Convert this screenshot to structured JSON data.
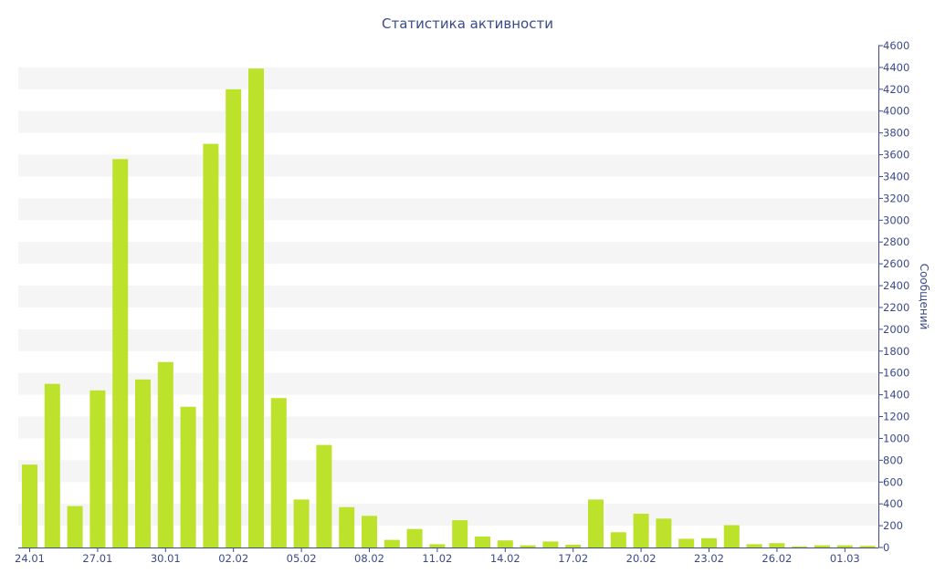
{
  "chart_data": {
    "type": "bar",
    "title": "Статистика активности",
    "xlabel": "",
    "ylabel": "Сообщений",
    "ylim": [
      0,
      4600
    ],
    "yticks": [
      0,
      200,
      400,
      600,
      800,
      1000,
      1200,
      1400,
      1600,
      1800,
      2000,
      2200,
      2400,
      2600,
      2800,
      3000,
      3200,
      3400,
      3600,
      3800,
      4000,
      4200,
      4400,
      4600
    ],
    "x_tick_labels": [
      "24.01",
      "27.01",
      "30.01",
      "02.02",
      "05.02",
      "08.02",
      "11.02",
      "14.02",
      "17.02",
      "20.02",
      "23.02",
      "26.02",
      "01.03"
    ],
    "x_tick_every": 3,
    "categories": [
      "24.01",
      "25.01",
      "26.01",
      "27.01",
      "28.01",
      "29.01",
      "30.01",
      "31.01",
      "01.02",
      "02.02",
      "03.02",
      "04.02",
      "05.02",
      "06.02",
      "07.02",
      "08.02",
      "09.02",
      "10.02",
      "11.02",
      "12.02",
      "13.02",
      "14.02",
      "15.02",
      "16.02",
      "17.02",
      "18.02",
      "19.02",
      "20.02",
      "21.02",
      "22.02",
      "23.02",
      "24.02",
      "25.02",
      "26.02",
      "27.02",
      "28.02",
      "01.03",
      "02.03"
    ],
    "values": [
      760,
      1500,
      380,
      1440,
      3560,
      1540,
      1700,
      1290,
      3700,
      4200,
      4390,
      1370,
      440,
      940,
      370,
      290,
      70,
      170,
      30,
      250,
      100,
      65,
      20,
      55,
      25,
      440,
      140,
      310,
      265,
      80,
      85,
      205,
      30,
      40,
      10,
      20,
      20,
      15
    ],
    "grid": "alternating horizontal bands",
    "legend": "none",
    "y_axis_side": "right",
    "colors": {
      "bar": "#bce22c",
      "band": "#f5f5f5",
      "text": "#3b4a8a",
      "axis": "#3b4a8a"
    }
  }
}
